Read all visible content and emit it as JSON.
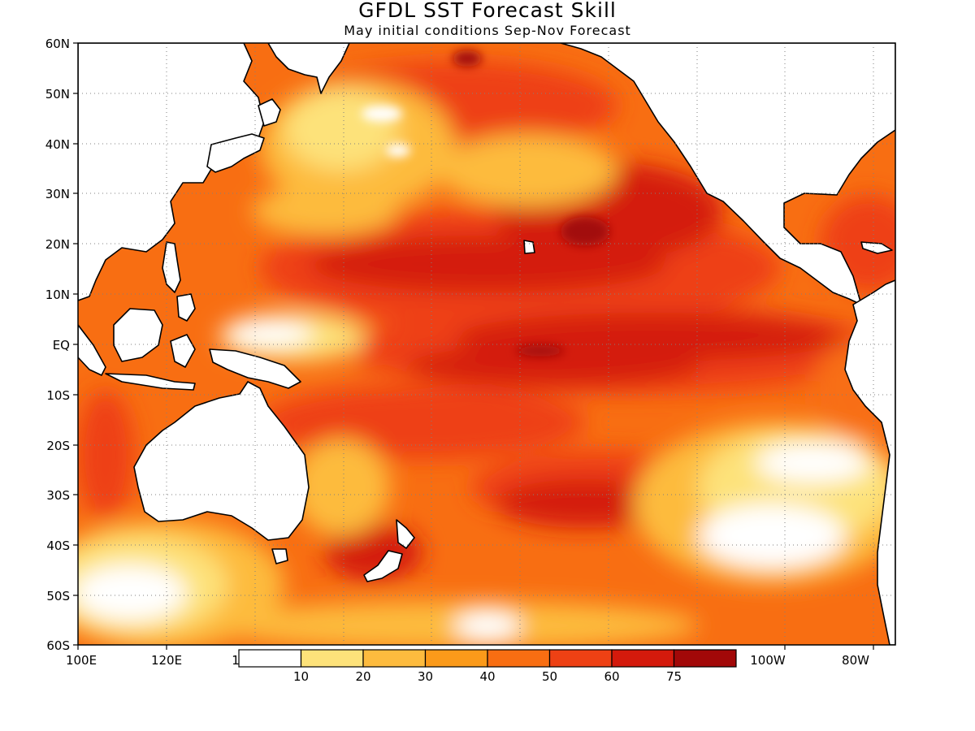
{
  "header": {
    "title": "GFDL SST Forecast Skill",
    "subtitle": "May initial conditions  Sep-Nov Forecast"
  },
  "map": {
    "lon_range_deg_east": [
      100,
      285
    ],
    "lat_range": [
      -60,
      60
    ],
    "lat_labels": [
      "60N",
      "50N",
      "40N",
      "30N",
      "20N",
      "10N",
      "EQ",
      "10S",
      "20S",
      "30S",
      "40S",
      "50S",
      "60S"
    ],
    "lon_labels": [
      "100E",
      "120E",
      "1",
      "100W",
      "80W"
    ],
    "grid": "dotted",
    "colors": {
      "land": "#ffffff",
      "coast": "#000000"
    }
  },
  "legend": {
    "levels": [
      "10",
      "20",
      "30",
      "40",
      "50",
      "60",
      "75"
    ],
    "colors": [
      "#ffffff",
      "#fde27a",
      "#fdbb3e",
      "#fb9a1a",
      "#f86e12",
      "#ee4114",
      "#d41a0c",
      "#a20808"
    ]
  }
}
